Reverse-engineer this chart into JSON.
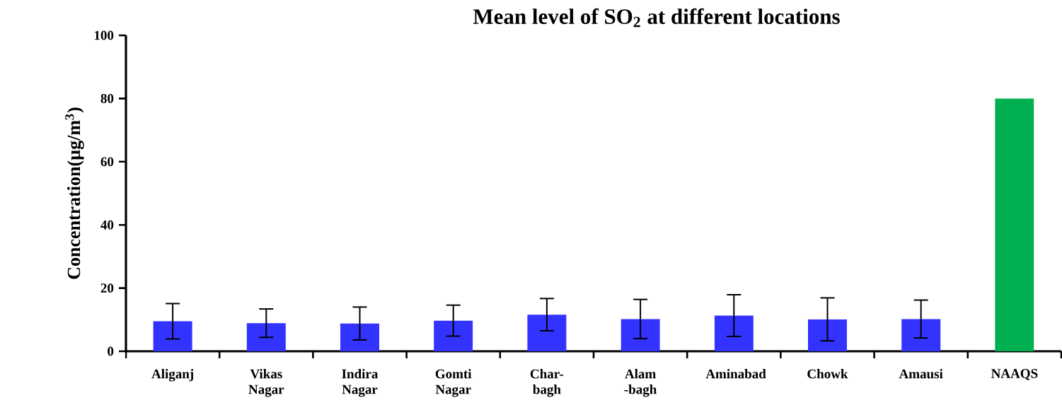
{
  "chart_data": {
    "type": "bar",
    "title": "Mean level of SO$_{2}$ at different locations",
    "ylabel": "Concentration(µg/m$^{3}$)",
    "categories": [
      "Aliganj",
      "Vikas Nagar",
      "Indira Nagar",
      "Gomti Nagar",
      "Char-bagh",
      "Alam -bagh",
      "Aminabad",
      "Chowk",
      "Amausi",
      "NAAQS"
    ],
    "values": [
      9.5,
      8.9,
      8.8,
      9.7,
      11.6,
      10.2,
      11.3,
      10.1,
      10.2,
      80
    ],
    "errors": [
      5.6,
      4.5,
      5.2,
      4.9,
      5.1,
      6.2,
      6.6,
      6.8,
      6.0,
      null
    ],
    "colors": [
      "#3333ff",
      "#3333ff",
      "#3333ff",
      "#3333ff",
      "#3333ff",
      "#3333ff",
      "#3333ff",
      "#3333ff",
      "#3333ff",
      "#00b050"
    ],
    "ylim": [
      0,
      100
    ],
    "yticks": [
      0,
      20,
      40,
      60,
      80,
      100
    ],
    "grid": false
  }
}
